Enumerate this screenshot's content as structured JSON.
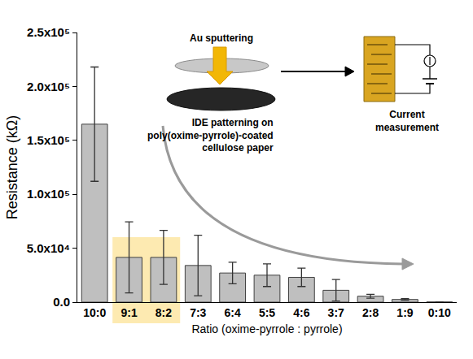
{
  "chart_data": {
    "type": "bar",
    "x_label": "Ratio (oxime-pyrrole : pyrrole)",
    "y_label": "Resistance (kΩ)",
    "categories": [
      "10:0",
      "9:1",
      "8:2",
      "7:3",
      "6:4",
      "5:5",
      "4:6",
      "3:7",
      "2:8",
      "1:9",
      "0:10"
    ],
    "values": [
      165000,
      41500,
      41500,
      34000,
      27000,
      25000,
      23000,
      11000,
      5500,
      2500,
      150
    ],
    "errors": [
      53000,
      33000,
      25000,
      28000,
      10000,
      10500,
      8500,
      10000,
      1800,
      700,
      0
    ],
    "color": "#bfbfbf",
    "ylim": [
      0,
      250000
    ],
    "yticks": [
      {
        "value": 0,
        "label": "0.0"
      },
      {
        "value": 50000,
        "label": "5.0x10⁴"
      },
      {
        "value": 100000,
        "label": "1.0x10⁵"
      },
      {
        "value": 150000,
        "label": "1.5x10⁵"
      },
      {
        "value": 200000,
        "label": "2.0x10⁵"
      },
      {
        "value": 250000,
        "label": "2.5x10⁵"
      }
    ],
    "grid": false,
    "highlight": [
      "9:1",
      "8:2"
    ],
    "annotations": [
      [
        "Au sputtering"
      ],
      [
        "IDE patterning on",
        "poly(oxime-pyrrole)-coated",
        "cellulose paper"
      ],
      [
        "Current",
        "measurement"
      ]
    ]
  }
}
